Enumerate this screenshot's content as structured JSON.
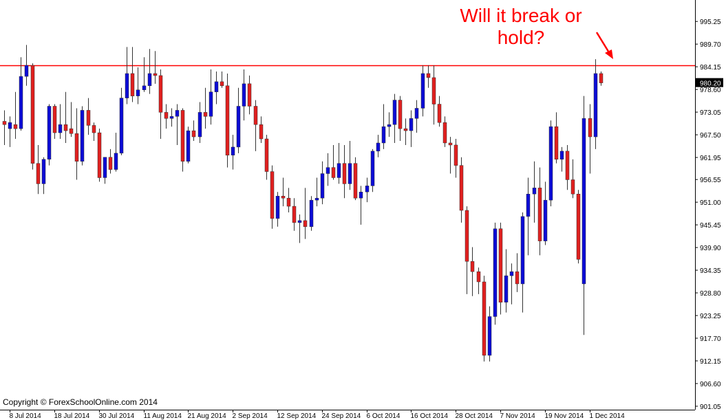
{
  "chart_data": {
    "type": "candlestick",
    "annotation": [
      "Will it break or",
      "hold?"
    ],
    "copyright": "Copyright © ForexSchoolOnline.com 2014",
    "categories": [
      null,
      "8 Jul 2014",
      null,
      null,
      null,
      null,
      null,
      null,
      null,
      "18 Jul 2014",
      null,
      null,
      null,
      null,
      null,
      null,
      null,
      "30 Jul 2014",
      null,
      null,
      null,
      null,
      null,
      null,
      null,
      "11 Aug 2014",
      null,
      null,
      null,
      null,
      null,
      null,
      null,
      "21 Aug 2014",
      null,
      null,
      null,
      null,
      null,
      null,
      null,
      "2 Sep 2014",
      null,
      null,
      null,
      null,
      null,
      null,
      null,
      "12 Sep 2014",
      null,
      null,
      null,
      null,
      null,
      null,
      null,
      "24 Sep 2014",
      null,
      null,
      null,
      null,
      null,
      null,
      null,
      "6 Oct 2014",
      null,
      null,
      null,
      null,
      null,
      null,
      null,
      "16 Oct 2014",
      null,
      null,
      null,
      null,
      null,
      null,
      null,
      "28 Oct 2014",
      null,
      null,
      null,
      null,
      null,
      null,
      null,
      "7 Nov 2014",
      null,
      null,
      null,
      null,
      null,
      null,
      null,
      "19 Nov 2014",
      null,
      null,
      null,
      null,
      null,
      null,
      null,
      "1 Dec 2014",
      null,
      null
    ],
    "open": [
      970.8,
      969.0,
      970.0,
      969.0,
      981.8,
      984.5,
      960.5,
      955.5,
      961.5,
      974.5,
      968.0,
      970.0,
      969.0,
      967.8,
      961.0,
      973.5,
      969.8,
      968.0,
      957.0,
      962.0,
      959.0,
      963.0,
      976.5,
      982.5,
      977.0,
      978.5,
      979.5,
      982.5,
      982.0,
      973.0,
      971.5,
      972.0,
      973.5,
      961.0,
      968.5,
      967.0,
      973.0,
      972.0,
      978.0,
      980.5,
      979.5,
      962.5,
      964.5,
      974.5,
      980.0,
      974.5,
      970.0,
      966.5,
      958.5,
      947.0,
      952.5,
      952.0,
      950.0,
      946.0,
      946.5,
      945.0,
      951.5,
      952.0,
      958.0,
      959.5,
      957.0,
      960.5,
      955.5,
      960.5,
      952.0,
      953.5,
      955.0,
      963.5,
      965.5,
      969.5,
      970.0,
      976.0,
      969.0,
      968.5,
      971.5,
      974.0,
      982.5,
      981.5,
      975.0,
      970.5,
      965.5,
      965.0,
      960.0,
      949.0,
      936.5,
      934.0,
      931.5,
      913.5,
      923.0,
      944.5,
      926.5,
      933.0,
      934.0,
      931.0,
      947.5,
      953.0,
      954.5,
      941.5,
      951.5,
      969.5,
      961.5,
      963.5,
      956.5,
      953.0,
      931.0,
      971.5,
      967.0,
      982.5
    ],
    "high": [
      973.5,
      972,
      978,
      986.5,
      989.5,
      985,
      965,
      962,
      975,
      975,
      975,
      978,
      975.5,
      974,
      974.5,
      976.5,
      970.5,
      969,
      962,
      964,
      968,
      979,
      989,
      989,
      984,
      986.5,
      988.5,
      988,
      983.5,
      975,
      974,
      975,
      974,
      969.5,
      971,
      975.5,
      979,
      983.5,
      983,
      983,
      982.5,
      967.5,
      979,
      983.5,
      982,
      976,
      972,
      967.5,
      960,
      953.5,
      957,
      954.5,
      952,
      948,
      954.5,
      952.5,
      957,
      961,
      963,
      965,
      965.5,
      965,
      966,
      962,
      955,
      957,
      964,
      967.5,
      975,
      973,
      977.5,
      977,
      971.5,
      973.5,
      976,
      984.5,
      984.5,
      984.5,
      977,
      972,
      967,
      966.5,
      962,
      950,
      940,
      935,
      933,
      925.5,
      946,
      946,
      939.5,
      936,
      938.5,
      948.5,
      957,
      961,
      959.5,
      956,
      971,
      973,
      964.5,
      965,
      961.5,
      954,
      977,
      975,
      986,
      983
    ],
    "low": [
      965,
      964.5,
      966.5,
      968.5,
      979.5,
      959,
      953,
      953,
      960,
      966.5,
      966.5,
      965.5,
      967,
      956.5,
      960,
      967.5,
      966,
      956,
      955.5,
      958,
      958.5,
      962.5,
      975,
      975.5,
      975,
      978,
      977.5,
      980,
      966.5,
      969,
      969.5,
      965,
      958.5,
      960.5,
      966,
      965.5,
      969,
      970,
      975,
      979,
      959.5,
      959,
      963,
      971,
      972.5,
      963.5,
      965.5,
      956.5,
      944.5,
      945,
      950,
      948.5,
      944,
      941,
      942,
      944,
      950,
      950.5,
      955,
      956.5,
      955.5,
      952,
      954,
      951.5,
      945.5,
      951,
      953.5,
      962,
      964,
      967,
      965.5,
      966,
      965,
      964.5,
      968,
      972,
      979,
      970,
      969.5,
      964.5,
      958,
      957,
      946,
      928.5,
      928,
      928.5,
      912,
      912,
      921,
      923.5,
      924,
      926,
      929,
      924,
      938,
      946,
      938,
      940.5,
      950,
      960.5,
      958.5,
      954,
      952,
      936,
      918.5,
      958,
      964,
      979.5
    ],
    "close": [
      970.0,
      970.5,
      969.0,
      981.8,
      984.5,
      960.5,
      955.5,
      961.5,
      974.5,
      968.0,
      970.0,
      968.5,
      967.8,
      961.0,
      973.5,
      969.8,
      968.0,
      957.0,
      962.0,
      959.0,
      963.0,
      976.5,
      982.5,
      977.0,
      978.5,
      979.5,
      982.5,
      982.0,
      973.0,
      971.5,
      972.0,
      973.5,
      961.0,
      968.5,
      967.0,
      973.0,
      972.0,
      978.0,
      980.5,
      979.5,
      962.5,
      964.5,
      974.5,
      980.0,
      974.5,
      970.0,
      966.5,
      958.5,
      947.0,
      952.5,
      952.0,
      950.0,
      946.0,
      946.5,
      945.0,
      951.5,
      952.0,
      958.0,
      959.5,
      957.0,
      960.5,
      955.5,
      960.5,
      952.0,
      953.5,
      955.0,
      963.5,
      965.5,
      969.5,
      970.0,
      976.0,
      969.0,
      968.5,
      971.5,
      974.0,
      982.5,
      981.5,
      975.0,
      970.5,
      965.5,
      965.0,
      960.0,
      949.0,
      936.5,
      934.0,
      931.5,
      913.5,
      923.0,
      944.5,
      926.5,
      933.0,
      934.0,
      931.0,
      947.5,
      953.0,
      954.5,
      941.5,
      951.5,
      969.5,
      961.5,
      963.5,
      956.5,
      953.0,
      937.0,
      971.5,
      967.0,
      982.5,
      980.2
    ],
    "bull_color": "#0c0cd6",
    "bear_color": "#e0201f",
    "resistance_level": 984.5,
    "line_color": "#ff0000",
    "current_price": {
      "value": 980.2,
      "label": "980.20"
    },
    "ylim": [
      900.2,
      1000.5
    ],
    "yticks": [
      995.25,
      {
        "value": 989.7,
        "label": "989.70"
      },
      984.15,
      {
        "value": 978.6,
        "label": "978.60"
      },
      973.05,
      {
        "value": 967.5,
        "label": "967.50"
      },
      961.95,
      956.55,
      {
        "value": 951,
        "label": "951.00"
      },
      945.45,
      {
        "value": 939.9,
        "label": "939.90"
      },
      934.35,
      {
        "value": 928.8,
        "label": "928.80"
      },
      923.25,
      {
        "value": 917.7,
        "label": "917.70"
      },
      912.15,
      {
        "value": 906.6,
        "label": "906.60"
      },
      901.05
    ]
  }
}
